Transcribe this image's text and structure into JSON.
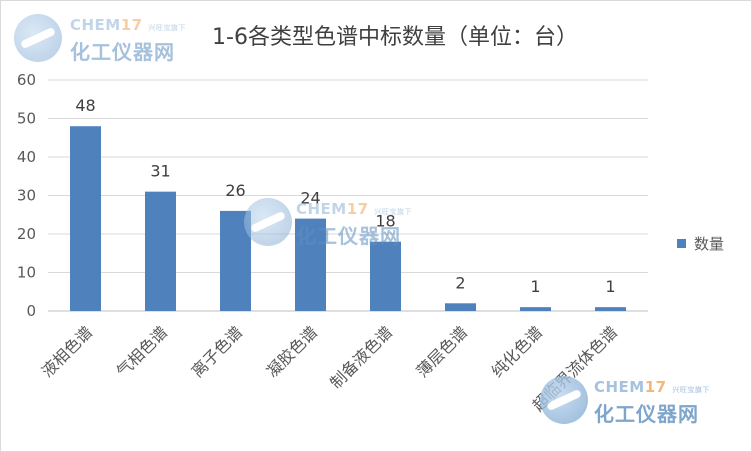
{
  "chart_data": {
    "type": "bar",
    "title": "1-6各类型色谱中标数量（单位：台）",
    "categories": [
      "液相色谱",
      "气相色谱",
      "离子色谱",
      "凝胶色谱",
      "制备液色谱",
      "薄层色谱",
      "纯化色谱",
      "超临界流体色谱"
    ],
    "series": [
      {
        "name": "数量",
        "values": [
          48,
          31,
          26,
          24,
          18,
          2,
          1,
          1
        ]
      }
    ],
    "ylim": [
      0,
      60
    ],
    "yticks": [
      0,
      10,
      20,
      30,
      40,
      50,
      60
    ],
    "grid": true,
    "legend": "right",
    "colors": {
      "bar": "#4f81bd",
      "grid": "#d9d9d9",
      "text": "#595959",
      "title": "#404040"
    }
  },
  "watermark": {
    "brand": "CHEM",
    "brand_num": "17",
    "tagline": "兴旺宝旗下",
    "name": "化工仪器网"
  }
}
